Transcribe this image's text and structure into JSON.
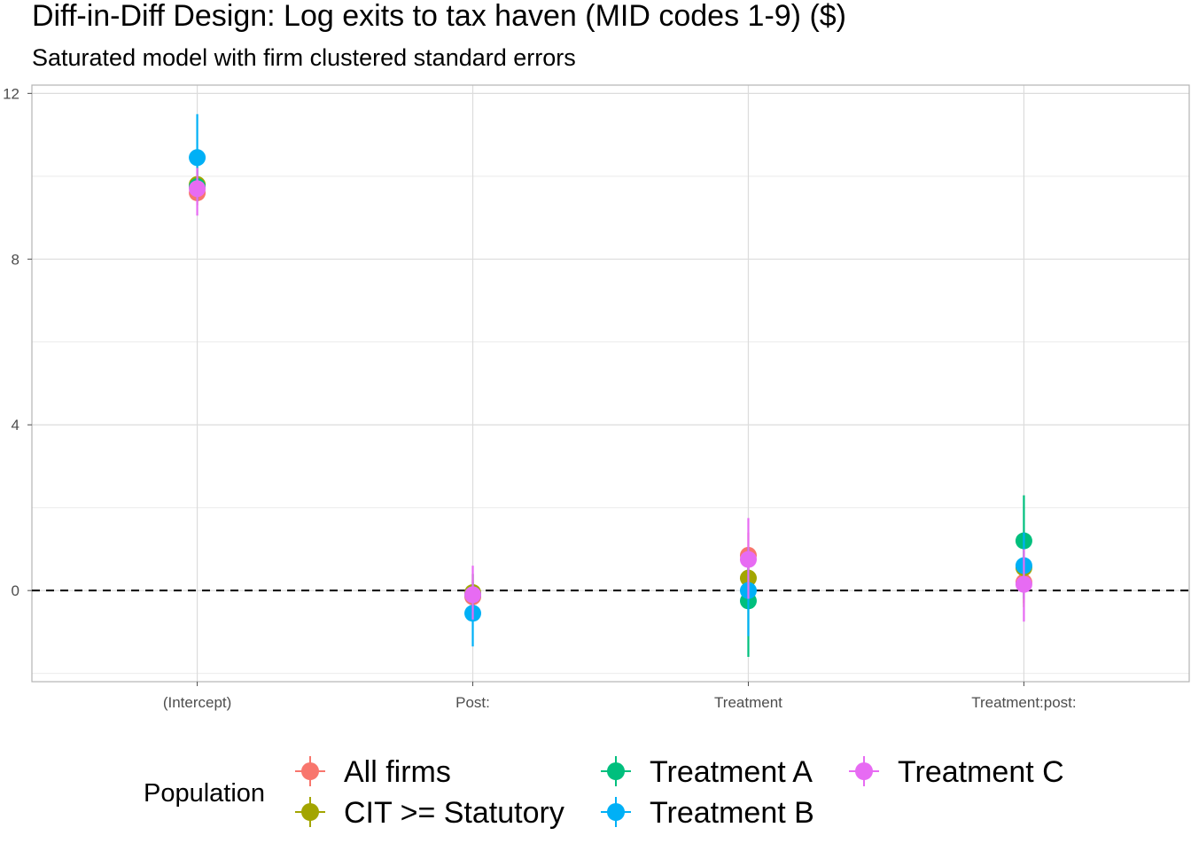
{
  "chart_data": {
    "type": "scatter",
    "subtype": "coefficient plot with error bars",
    "title": "Diff-in-Diff Design: Log exits to tax haven (MID codes 1-9)  ($)",
    "subtitle": "Saturated model with firm clustered standard errors",
    "xlabel": "",
    "ylabel": "",
    "categories": [
      "(Intercept)",
      "Post:",
      "Treatment",
      "Treatment:post:"
    ],
    "ylim": [
      -2.2,
      12.2
    ],
    "yticks": [
      0,
      4,
      8,
      12
    ],
    "grid": true,
    "reference_line": {
      "y": 0,
      "style": "dashed"
    },
    "legend": {
      "title": "Population",
      "position": "bottom"
    },
    "series": [
      {
        "name": "All firms",
        "color": "#F8766D",
        "values": [
          9.6,
          -0.15,
          0.85,
          0.2
        ],
        "lower": [
          9.3,
          -0.55,
          0.3,
          -0.3
        ],
        "upper": [
          9.9,
          0.25,
          1.4,
          0.7
        ]
      },
      {
        "name": "CIT >= Statutory",
        "color": "#A3A500",
        "values": [
          9.8,
          -0.05,
          0.3,
          0.55
        ],
        "lower": [
          9.4,
          -0.5,
          -0.25,
          -0.4
        ],
        "upper": [
          10.3,
          0.4,
          0.9,
          1.3
        ]
      },
      {
        "name": "Treatment A",
        "color": "#00BF7D",
        "values": [
          9.75,
          -0.1,
          -0.25,
          1.2
        ],
        "lower": [
          9.4,
          -0.6,
          -1.6,
          0.1
        ],
        "upper": [
          10.15,
          0.4,
          1.05,
          2.3
        ]
      },
      {
        "name": "Treatment B",
        "color": "#00B0F6",
        "values": [
          10.45,
          -0.55,
          0.0,
          0.6
        ],
        "lower": [
          9.4,
          -1.35,
          -1.1,
          -0.2
        ],
        "upper": [
          11.5,
          0.2,
          1.0,
          1.4
        ]
      },
      {
        "name": "Treatment C",
        "color": "#E76BF3",
        "values": [
          9.7,
          -0.1,
          0.75,
          0.15
        ],
        "lower": [
          9.05,
          -0.7,
          -0.2,
          -0.75
        ],
        "upper": [
          10.2,
          0.6,
          1.75,
          1.0
        ]
      }
    ]
  }
}
